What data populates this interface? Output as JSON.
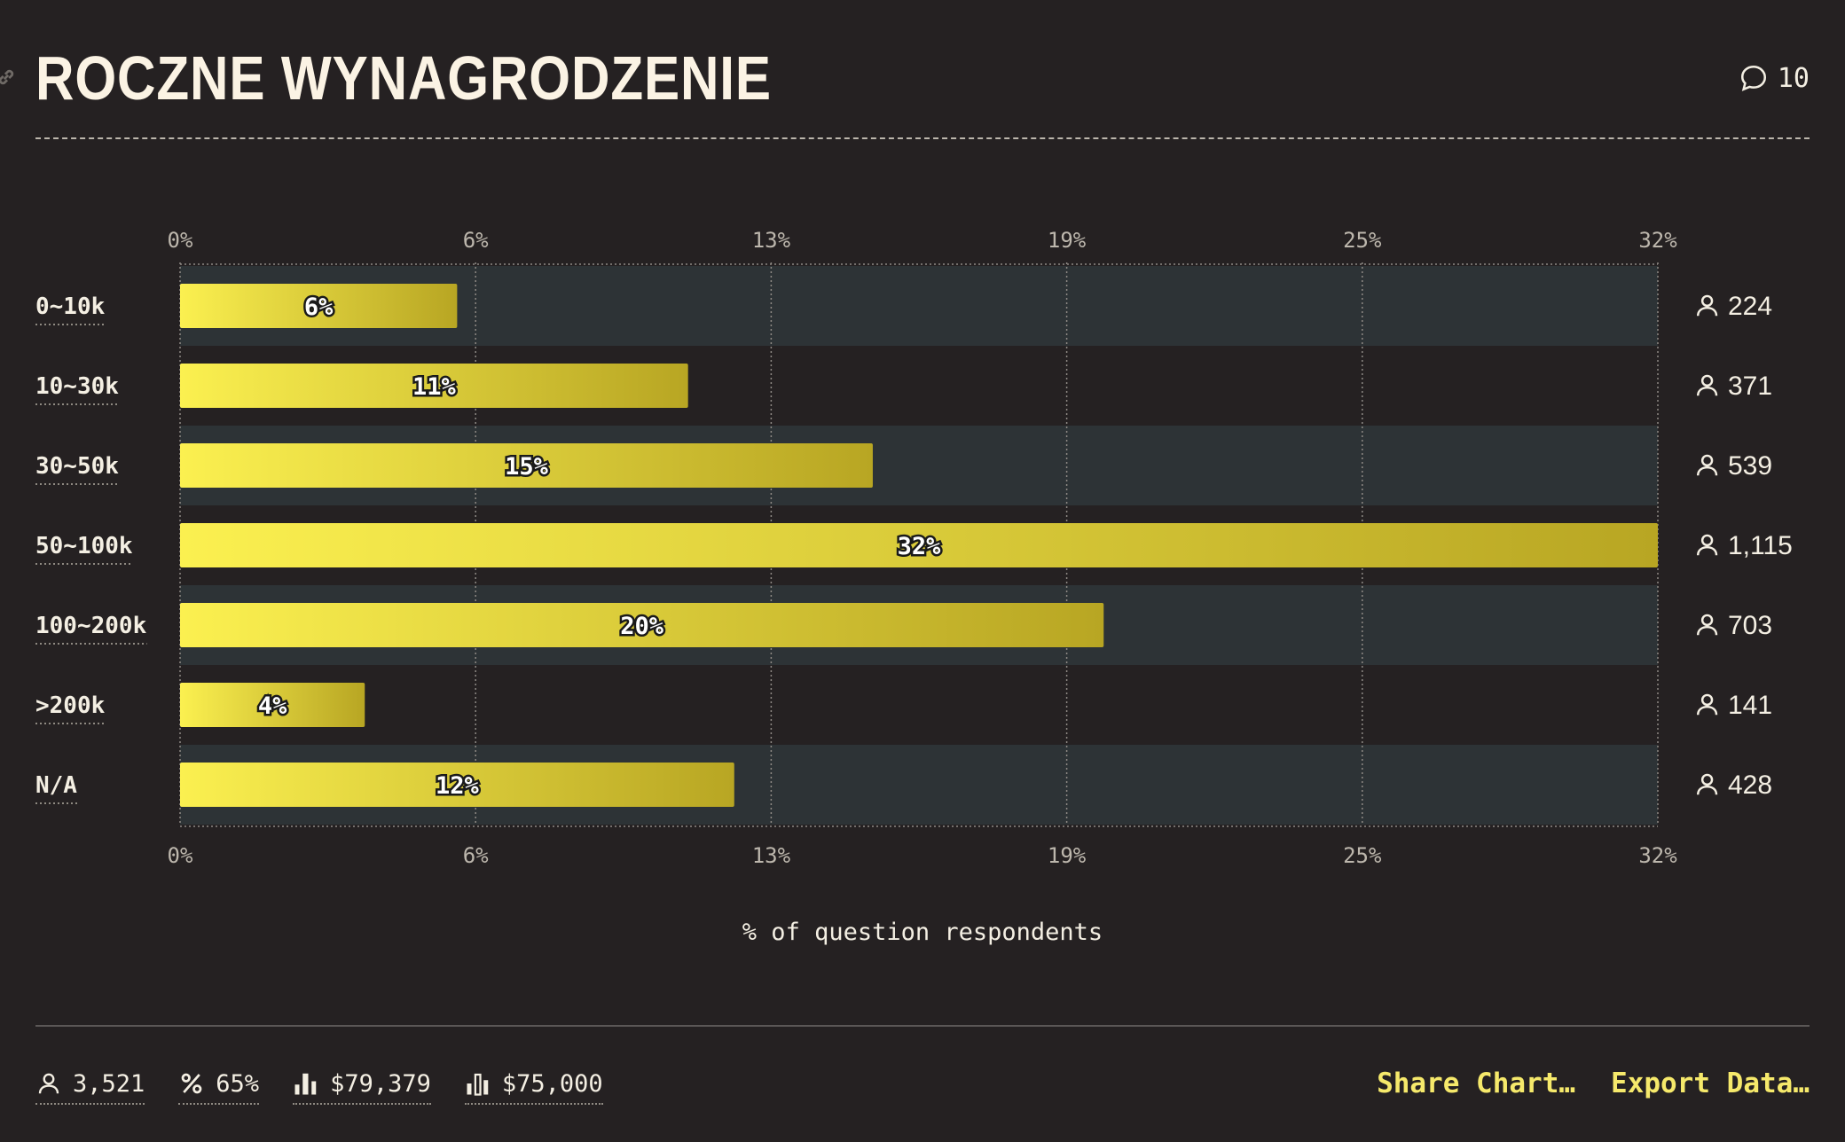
{
  "header": {
    "title": "ROCZNE WYNAGRODZENIE",
    "comment_count": "10"
  },
  "chart_data": {
    "type": "bar",
    "orientation": "horizontal",
    "categories": [
      "0~10k",
      "10~30k",
      "30~50k",
      "50~100k",
      "100~200k",
      ">200k",
      "N/A"
    ],
    "values": [
      6,
      11,
      15,
      32,
      20,
      4,
      12
    ],
    "value_labels": [
      "6%",
      "11%",
      "15%",
      "32%",
      "20%",
      "4%",
      "12%"
    ],
    "respondents": [
      "224",
      "371",
      "539",
      "1,115",
      "703",
      "141",
      "428"
    ],
    "xticks": [
      "0%",
      "6%",
      "13%",
      "19%",
      "25%",
      "32%"
    ],
    "xlim": [
      0,
      32
    ],
    "xlabel": "% of question respondents",
    "grid": true,
    "colors": {
      "bar_start": "#fbf050",
      "bar_end": "#b8a623",
      "band": "#2d3336"
    }
  },
  "footer": {
    "stats": [
      {
        "icon": "person-icon",
        "value": "3,521"
      },
      {
        "icon": "percent-icon",
        "value": "65%"
      },
      {
        "icon": "average-bars-icon",
        "value": "$79,379"
      },
      {
        "icon": "median-bars-icon",
        "value": "$75,000"
      }
    ],
    "actions": {
      "share": "Share Chart…",
      "export": "Export Data…"
    }
  }
}
